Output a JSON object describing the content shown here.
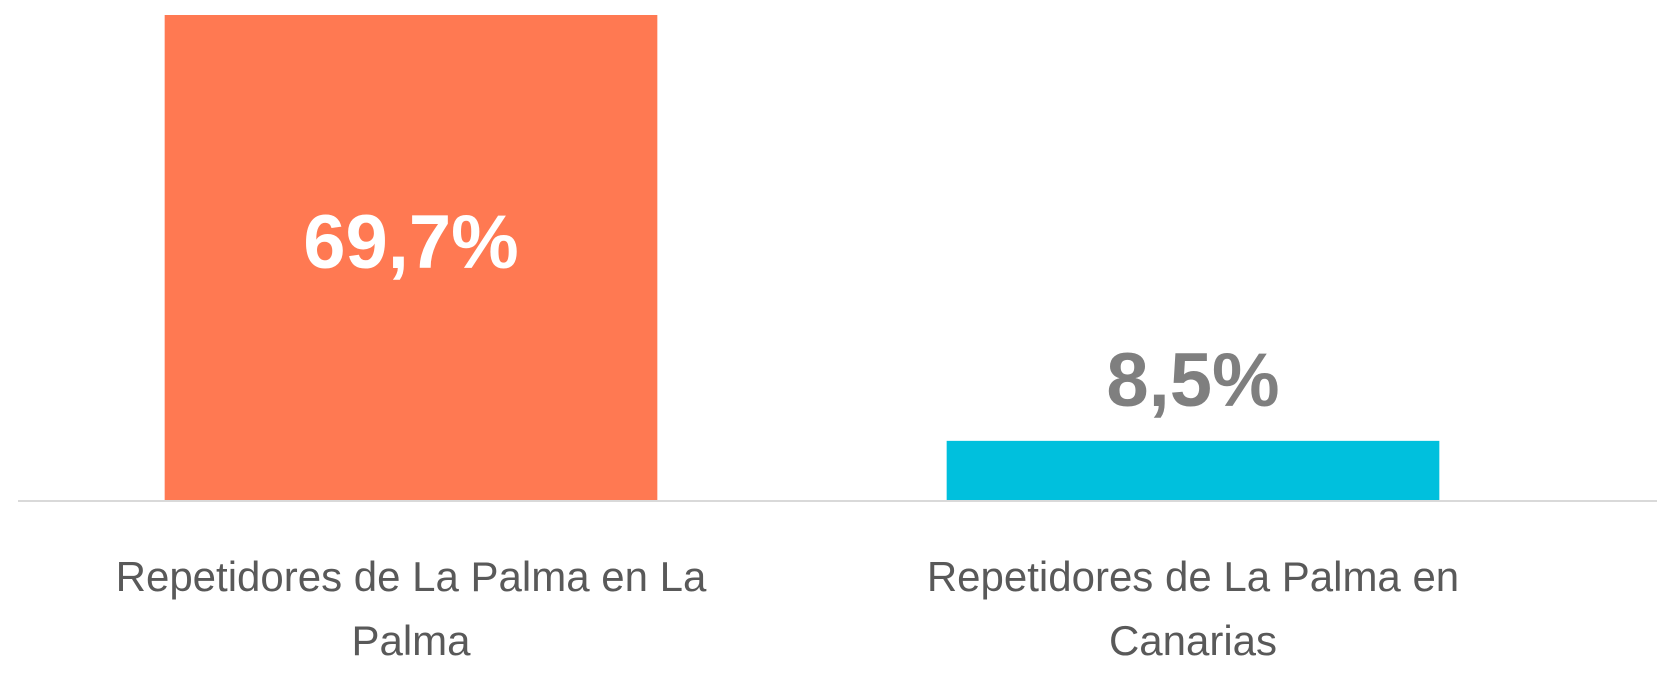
{
  "chart_data": {
    "type": "bar",
    "categories": [
      "Repetidores de La Palma en La Palma",
      "Repetidores de La Palma en Canarias"
    ],
    "values": [
      69.7,
      8.5
    ],
    "value_labels": [
      "69,7%",
      "8,5%"
    ],
    "colors": [
      "#ff7952",
      "#00c0dd"
    ]
  }
}
